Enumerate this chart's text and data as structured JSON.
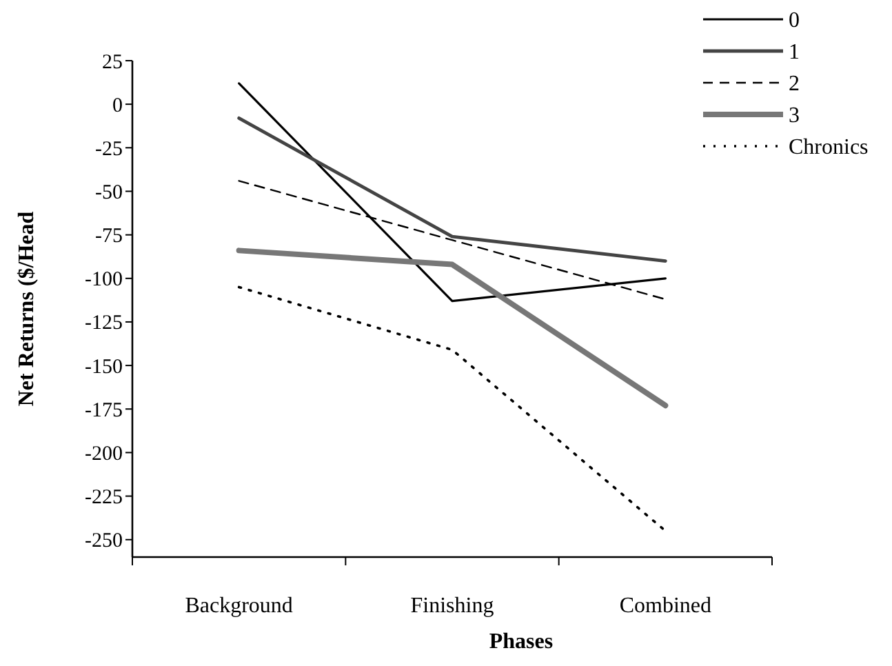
{
  "chart_data": {
    "type": "line",
    "xlabel": "Phases",
    "ylabel": "Net Returns ($/Head",
    "categories": [
      "Background",
      "Finishing",
      "Combined"
    ],
    "ylim": [
      -260,
      25
    ],
    "yticks": [
      25,
      0,
      -25,
      -50,
      -75,
      -100,
      -125,
      -150,
      -175,
      -200,
      -225,
      -250
    ],
    "legend": "top right",
    "grid": false,
    "series": [
      {
        "name": "0",
        "color": "#000000",
        "line_style": "solid",
        "values": [
          12,
          -113,
          -100
        ]
      },
      {
        "name": "1",
        "color": "#444444",
        "line_style": "solid",
        "values": [
          -8,
          -76,
          -90
        ]
      },
      {
        "name": "2",
        "color": "#000000",
        "line_style": "dashed",
        "values": [
          -44,
          -78,
          -112
        ]
      },
      {
        "name": "3",
        "color": "#777777",
        "line_style": "solid",
        "values": [
          -84,
          -92,
          -173
        ]
      },
      {
        "name": "Chronics",
        "color": "#000000",
        "line_style": "dotted",
        "values": [
          -105,
          -141,
          -245
        ]
      }
    ]
  }
}
